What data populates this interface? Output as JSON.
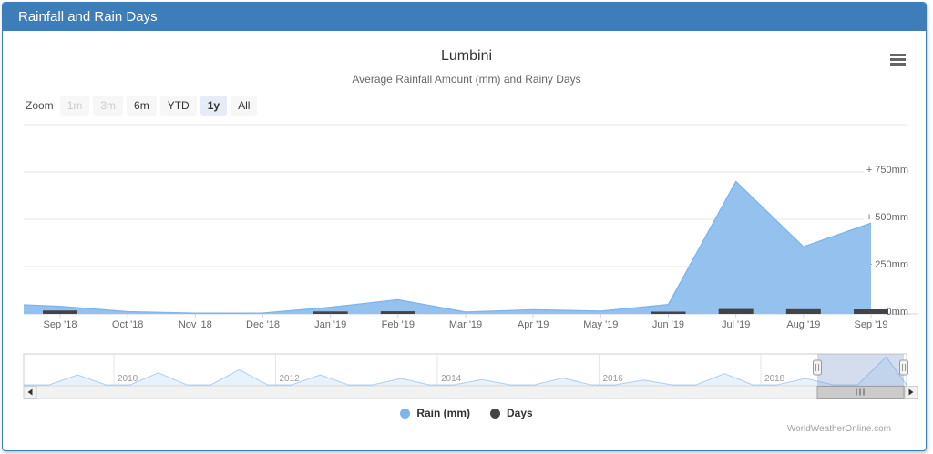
{
  "panel": {
    "header": "Rainfall and Rain Days"
  },
  "chart": {
    "title": "Lumbini",
    "subtitle": "Average Rainfall Amount (mm) and Rainy Days",
    "range_selector": {
      "label": "Zoom",
      "buttons": [
        {
          "label": "1m",
          "state": "disabled"
        },
        {
          "label": "3m",
          "state": "disabled"
        },
        {
          "label": "6m",
          "state": "normal"
        },
        {
          "label": "YTD",
          "state": "normal"
        },
        {
          "label": "1y",
          "state": "selected"
        },
        {
          "label": "All",
          "state": "normal"
        }
      ]
    },
    "legend": [
      {
        "label": "Rain (mm)",
        "color": "#7cb5ec"
      },
      {
        "label": "Days",
        "color": "#434348"
      }
    ],
    "watermark": "WorldWeatherOnline.com",
    "colors": {
      "header_blue": "#3d7eba",
      "rain_fill": "#94c1ee",
      "rain_line": "#7cb5ec",
      "days_color": "#434348",
      "gridline": "#e6e6e6",
      "axis_line": "#ccd6eb",
      "label_gray": "#666666"
    }
  },
  "chart_data": {
    "type": "area",
    "title": "Lumbini",
    "subtitle": "Average Rainfall Amount (mm) and Rainy Days",
    "xlabel": "",
    "ylabel": "",
    "ylim": [
      0,
      1000
    ],
    "grid": true,
    "legend_position": "bottom",
    "categories": [
      "Sep '18",
      "Oct '18",
      "Nov '18",
      "Dec '18",
      "Jan '19",
      "Feb '19",
      "Mar '19",
      "Apr '19",
      "May '19",
      "Jun '19",
      "Jul '19",
      "Aug '19",
      "Sep '19"
    ],
    "series": [
      {
        "name": "Rain (mm)",
        "type": "area",
        "color": "#7cb5ec",
        "values": [
          40,
          12,
          4,
          5,
          35,
          75,
          10,
          22,
          15,
          50,
          700,
          355,
          480
        ]
      },
      {
        "name": "Days",
        "type": "column",
        "color": "#434348",
        "values": [
          18,
          2,
          1,
          1,
          13,
          14,
          3,
          4,
          4,
          12,
          26,
          25,
          24
        ]
      }
    ],
    "edge_value_mm": 48,
    "yaxis": {
      "position": "right",
      "ticks": [
        {
          "value": 0,
          "label": "0mm"
        },
        {
          "value": 250,
          "label": "+ 250mm"
        },
        {
          "value": 500,
          "label": "+ 500mm"
        },
        {
          "value": 750,
          "label": "+ 750mm"
        },
        {
          "value": 1000,
          "label": ""
        }
      ]
    },
    "navigator": {
      "year_labels": [
        "2010",
        "2012",
        "2014",
        "2016",
        "2018"
      ],
      "years": [
        2009,
        2010,
        2011,
        2012,
        2013,
        2014,
        2015,
        2016,
        2017,
        2018,
        2019
      ],
      "annual_peak_mm": [
        250,
        300,
        380,
        250,
        160,
        130,
        170,
        120,
        280,
        160,
        700
      ],
      "selected_from": "Sep '18",
      "selected_to": "Sep '19"
    }
  }
}
